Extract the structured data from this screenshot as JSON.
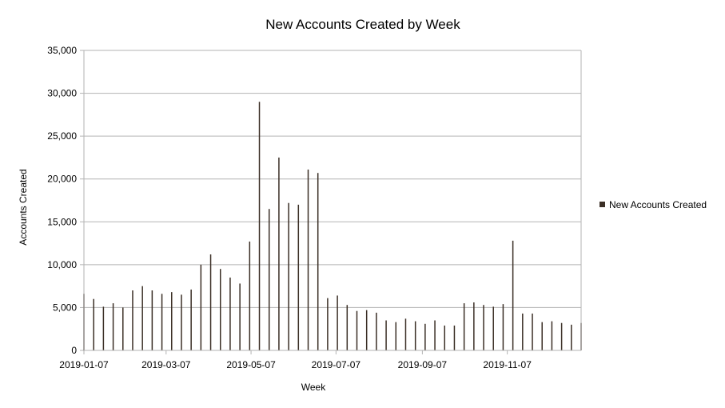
{
  "chart_data": {
    "type": "bar",
    "title": "New Accounts Created by Week",
    "xlabel": "Week",
    "ylabel": "Accounts Created",
    "ylim": [
      0,
      35000
    ],
    "yticks": [
      0,
      5000,
      10000,
      15000,
      20000,
      25000,
      30000,
      35000
    ],
    "ytick_labels": [
      "0",
      "5,000",
      "10,000",
      "15,000",
      "20,000",
      "25,000",
      "30,000",
      "35,000"
    ],
    "xlim": [
      "2019-01-07",
      "2019-12-30"
    ],
    "xticks": [
      "2019-01-07",
      "2019-03-07",
      "2019-05-07",
      "2019-07-07",
      "2019-09-07",
      "2019-11-07"
    ],
    "grid": true,
    "legend_position": "right",
    "series": [
      {
        "name": "New Accounts Created",
        "color": "#3b2f26",
        "x": [
          "2019-01-07",
          "2019-01-14",
          "2019-01-21",
          "2019-01-28",
          "2019-02-04",
          "2019-02-11",
          "2019-02-18",
          "2019-02-25",
          "2019-03-04",
          "2019-03-11",
          "2019-03-18",
          "2019-03-25",
          "2019-04-01",
          "2019-04-08",
          "2019-04-15",
          "2019-04-22",
          "2019-04-29",
          "2019-05-06",
          "2019-05-13",
          "2019-05-20",
          "2019-05-27",
          "2019-06-03",
          "2019-06-10",
          "2019-06-17",
          "2019-06-24",
          "2019-07-01",
          "2019-07-08",
          "2019-07-15",
          "2019-07-22",
          "2019-07-29",
          "2019-08-05",
          "2019-08-12",
          "2019-08-19",
          "2019-08-26",
          "2019-09-02",
          "2019-09-09",
          "2019-09-16",
          "2019-09-23",
          "2019-09-30",
          "2019-10-07",
          "2019-10-14",
          "2019-10-21",
          "2019-10-28",
          "2019-11-04",
          "2019-11-11",
          "2019-11-18",
          "2019-11-25",
          "2019-12-02",
          "2019-12-09",
          "2019-12-16",
          "2019-12-23",
          "2019-12-30"
        ],
        "values": [
          6600,
          6000,
          5100,
          5500,
          5000,
          7000,
          7500,
          7000,
          6600,
          6800,
          6500,
          7100,
          10000,
          11200,
          9500,
          8500,
          7800,
          12700,
          29000,
          16500,
          22500,
          17200,
          17000,
          21100,
          20700,
          6100,
          6400,
          5300,
          4600,
          4700,
          4400,
          3500,
          3300,
          3700,
          3400,
          3100,
          3500,
          2900,
          2900,
          5500,
          5600,
          5300,
          5100,
          5400,
          12800,
          4300,
          4300,
          3300,
          3400,
          3200,
          3000,
          3200
        ]
      }
    ]
  }
}
